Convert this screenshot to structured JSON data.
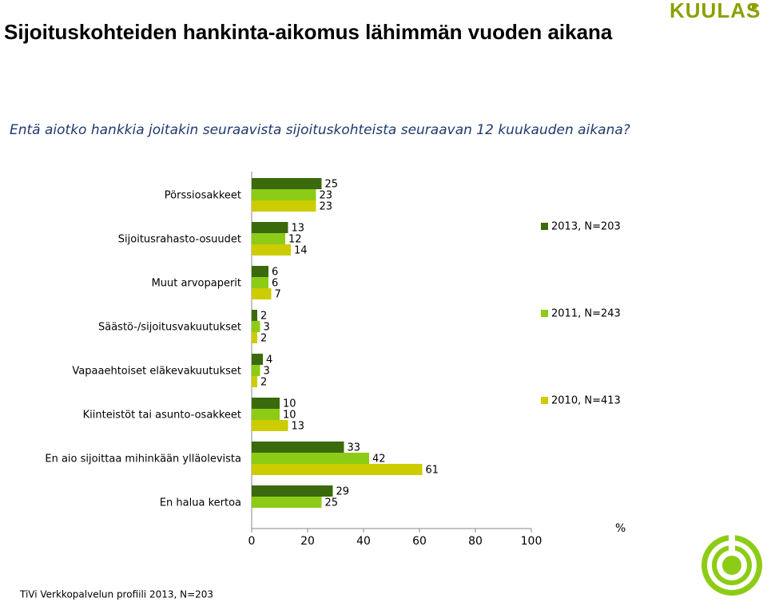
{
  "logo": "KUULAS",
  "footer": "TiVi Verkkopalvelun profiili 2013, N=203",
  "chart_data": {
    "type": "bar",
    "orientation": "horizontal",
    "title": "Sijoituskohteiden hankinta-aikomus lähimmän vuoden aikana",
    "subtitle": "Entä aiotko hankkia joitakin seuraavista sijoituskohteista seuraavan 12 kuukauden aikana?",
    "x_label": "%",
    "categories": [
      "Pörssiosakkeet",
      "Sijoitusrahasto-osuudet",
      "Muut arvopaperit",
      "Säästö-/sijoitusvakuutukset",
      "Vapaaehtoiset eläkevakuutukset",
      "Kiinteistöt tai asunto-osakkeet",
      "En aio sijoittaa mihinkään ylläolevista",
      "En halua kertoa"
    ],
    "series": [
      {
        "name": "2013, N=203",
        "color": "#3b6a0c",
        "values": [
          25,
          13,
          6,
          2,
          4,
          10,
          33,
          29
        ]
      },
      {
        "name": "2011, N=243",
        "color": "#8dcc16",
        "values": [
          23,
          12,
          6,
          3,
          3,
          10,
          42,
          25
        ]
      },
      {
        "name": "2010, N=413",
        "color": "#cccc00",
        "values": [
          23,
          14,
          7,
          2,
          2,
          13,
          61,
          null
        ]
      }
    ],
    "xlim": [
      0,
      100
    ],
    "xticks": [
      0,
      20,
      40,
      60,
      80,
      100
    ],
    "legend": "right"
  }
}
